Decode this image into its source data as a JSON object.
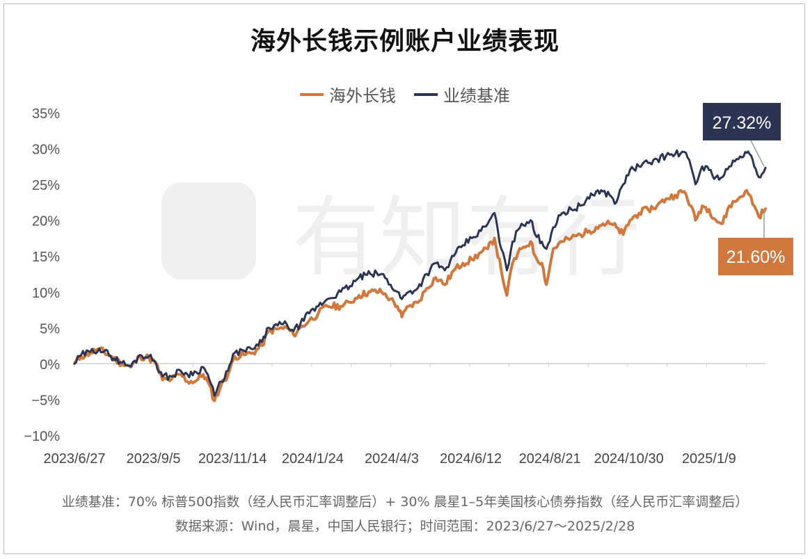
{
  "title": "海外长钱示例账户业绩表现",
  "legend": [
    {
      "name": "海外长钱",
      "color": "#D0793F"
    },
    {
      "name": "业绩基准",
      "color": "#2B3452"
    }
  ],
  "watermark": "有知有行",
  "footnotes": {
    "benchmark": "业绩基准：70% 标普500指数（经人民币汇率调整后）+ 30% 晨星1–5年美国核心债券指数（经人民币汇率调整后）",
    "source": "数据来源：Wind，晨星，中国人民银行；时间范围：2023/6/27～2025/2/28"
  },
  "chart_data": {
    "type": "line",
    "ylim": [
      -10,
      35
    ],
    "yticks": [
      "35%",
      "30%",
      "25%",
      "20%",
      "15%",
      "10%",
      "5%",
      "0%",
      "−5%",
      "−10%"
    ],
    "ytick_values": [
      35,
      30,
      25,
      20,
      15,
      10,
      5,
      0,
      -5,
      -10
    ],
    "xticks": [
      "2023/6/27",
      "2023/9/5",
      "2023/11/14",
      "2024/1/24",
      "2024/4/3",
      "2024/6/12",
      "2024/8/21",
      "2024/10/30",
      "2025/1/9"
    ],
    "xtick_days": [
      0,
      70,
      140,
      211,
      281,
      351,
      421,
      491,
      562
    ],
    "x_end_day": 612,
    "series": [
      {
        "name": "海外长钱",
        "color": "#D0793F",
        "end_label": "21.60%",
        "points": [
          [
            0,
            0
          ],
          [
            6,
            1
          ],
          [
            14,
            1.5
          ],
          [
            22,
            2
          ],
          [
            32,
            1
          ],
          [
            42,
            0
          ],
          [
            50,
            -0.5
          ],
          [
            58,
            1
          ],
          [
            66,
            0.8
          ],
          [
            72,
            0
          ],
          [
            78,
            -2.3
          ],
          [
            86,
            -2.2
          ],
          [
            94,
            -1.5
          ],
          [
            100,
            -2.5
          ],
          [
            108,
            -2.4
          ],
          [
            114,
            -1.5
          ],
          [
            118,
            -2.5
          ],
          [
            124,
            -5.2
          ],
          [
            130,
            -3
          ],
          [
            136,
            -1.5
          ],
          [
            142,
            1
          ],
          [
            150,
            1.2
          ],
          [
            158,
            1.5
          ],
          [
            166,
            2.5
          ],
          [
            172,
            4.5
          ],
          [
            180,
            4.8
          ],
          [
            188,
            5
          ],
          [
            194,
            4
          ],
          [
            200,
            5
          ],
          [
            208,
            6
          ],
          [
            216,
            7
          ],
          [
            224,
            8
          ],
          [
            236,
            8
          ],
          [
            244,
            8.5
          ],
          [
            252,
            9.5
          ],
          [
            262,
            10
          ],
          [
            272,
            10
          ],
          [
            280,
            9
          ],
          [
            286,
            8
          ],
          [
            290,
            6.5
          ],
          [
            296,
            8
          ],
          [
            304,
            8.5
          ],
          [
            312,
            10.5
          ],
          [
            320,
            12
          ],
          [
            328,
            11
          ],
          [
            336,
            13
          ],
          [
            344,
            14
          ],
          [
            352,
            14.5
          ],
          [
            360,
            15.5
          ],
          [
            366,
            16
          ],
          [
            372,
            17.5
          ],
          [
            378,
            13
          ],
          [
            383,
            9.5
          ],
          [
            388,
            14
          ],
          [
            396,
            16
          ],
          [
            404,
            17
          ],
          [
            408,
            15
          ],
          [
            414,
            14
          ],
          [
            418,
            11
          ],
          [
            424,
            16
          ],
          [
            432,
            17
          ],
          [
            440,
            17.5
          ],
          [
            448,
            18
          ],
          [
            456,
            18.5
          ],
          [
            462,
            19
          ],
          [
            468,
            19.5
          ],
          [
            474,
            19.5
          ],
          [
            480,
            19
          ],
          [
            486,
            18
          ],
          [
            492,
            20
          ],
          [
            500,
            21
          ],
          [
            508,
            21.5
          ],
          [
            516,
            22
          ],
          [
            524,
            23
          ],
          [
            532,
            23.5
          ],
          [
            540,
            24
          ],
          [
            546,
            22
          ],
          [
            550,
            20
          ],
          [
            556,
            22
          ],
          [
            562,
            21.5
          ],
          [
            568,
            20
          ],
          [
            574,
            19.5
          ],
          [
            580,
            22
          ],
          [
            588,
            23
          ],
          [
            594,
            24
          ],
          [
            598,
            23.5
          ],
          [
            602,
            22
          ],
          [
            606,
            20.5
          ],
          [
            612,
            21.6
          ]
        ]
      },
      {
        "name": "业绩基准",
        "color": "#2B3452",
        "end_label": "27.32%",
        "points": [
          [
            0,
            0
          ],
          [
            6,
            1.2
          ],
          [
            14,
            1.6
          ],
          [
            22,
            2.1
          ],
          [
            32,
            1.1
          ],
          [
            42,
            0.1
          ],
          [
            50,
            -0.4
          ],
          [
            58,
            1.2
          ],
          [
            66,
            1
          ],
          [
            72,
            0.2
          ],
          [
            78,
            -1.8
          ],
          [
            86,
            -1.8
          ],
          [
            94,
            -1
          ],
          [
            100,
            -1.5
          ],
          [
            108,
            -1.2
          ],
          [
            114,
            -0.5
          ],
          [
            118,
            -1.5
          ],
          [
            124,
            -4.5
          ],
          [
            130,
            -2.5
          ],
          [
            136,
            -1
          ],
          [
            142,
            1.5
          ],
          [
            150,
            1.8
          ],
          [
            158,
            2
          ],
          [
            166,
            3
          ],
          [
            172,
            5
          ],
          [
            180,
            5.3
          ],
          [
            188,
            5.5
          ],
          [
            194,
            4.5
          ],
          [
            200,
            5.5
          ],
          [
            208,
            7
          ],
          [
            216,
            8
          ],
          [
            224,
            9
          ],
          [
            236,
            10
          ],
          [
            244,
            10.8
          ],
          [
            252,
            12
          ],
          [
            262,
            12.5
          ],
          [
            272,
            12.5
          ],
          [
            280,
            11
          ],
          [
            286,
            10
          ],
          [
            290,
            9
          ],
          [
            296,
            10
          ],
          [
            304,
            10.5
          ],
          [
            312,
            12.5
          ],
          [
            320,
            14
          ],
          [
            328,
            13
          ],
          [
            336,
            15
          ],
          [
            344,
            16.5
          ],
          [
            352,
            17.5
          ],
          [
            360,
            18.5
          ],
          [
            366,
            19.5
          ],
          [
            372,
            21
          ],
          [
            378,
            16
          ],
          [
            383,
            13
          ],
          [
            388,
            17
          ],
          [
            396,
            19.5
          ],
          [
            404,
            20
          ],
          [
            408,
            18
          ],
          [
            414,
            17
          ],
          [
            418,
            16
          ],
          [
            424,
            19
          ],
          [
            432,
            21
          ],
          [
            440,
            21.5
          ],
          [
            448,
            22
          ],
          [
            456,
            23
          ],
          [
            462,
            24
          ],
          [
            468,
            24
          ],
          [
            474,
            23.5
          ],
          [
            480,
            22.5
          ],
          [
            486,
            25
          ],
          [
            492,
            27
          ],
          [
            500,
            27.5
          ],
          [
            508,
            28
          ],
          [
            516,
            28.5
          ],
          [
            524,
            29
          ],
          [
            532,
            29.2
          ],
          [
            540,
            29.5
          ],
          [
            546,
            27.5
          ],
          [
            550,
            25
          ],
          [
            556,
            27.5
          ],
          [
            562,
            27
          ],
          [
            568,
            26
          ],
          [
            574,
            26
          ],
          [
            580,
            27.5
          ],
          [
            588,
            28.5
          ],
          [
            594,
            29.5
          ],
          [
            598,
            29.2
          ],
          [
            602,
            27.5
          ],
          [
            606,
            26
          ],
          [
            612,
            27.32
          ]
        ]
      }
    ]
  }
}
